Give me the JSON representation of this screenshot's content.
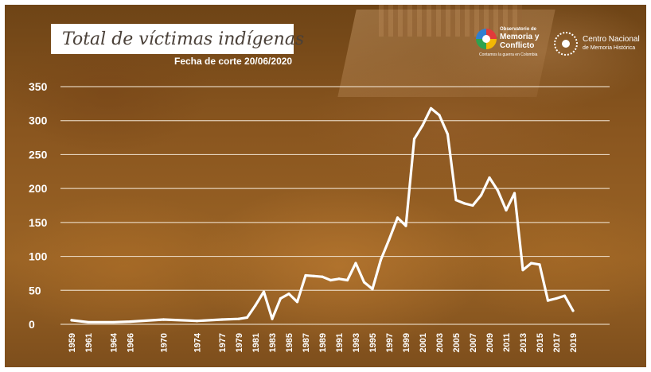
{
  "title": "Total de víctimas indígenas",
  "subtitle": "Fecha de corte  20/06/2020",
  "logos": {
    "observatorio": {
      "line1": "Observatorio de",
      "line2": "Memoria y",
      "line3": "Conflicto",
      "tagline": "Contamos la guerra en Colombia"
    },
    "cnmh": {
      "line1": "Centro Nacional",
      "line2": "de Memoria Histórica"
    }
  },
  "colors": {
    "line": "#ffffff",
    "grid": "#f3e6d4",
    "background": "#8a561f"
  },
  "chart_data": {
    "type": "line",
    "title": "Total de víctimas indígenas",
    "xlabel": "",
    "ylabel": "",
    "ylim": [
      0,
      350
    ],
    "yticks": [
      0,
      50,
      100,
      150,
      200,
      250,
      300,
      350
    ],
    "xtick_labels": [
      "1959",
      "1961",
      "1964",
      "1966",
      "1970",
      "1974",
      "1977",
      "1979",
      "1981",
      "1983",
      "1985",
      "1987",
      "1989",
      "1991",
      "1993",
      "1995",
      "1997",
      "1999",
      "2001",
      "2003",
      "2005",
      "2007",
      "2009",
      "2011",
      "2013",
      "2015",
      "2017",
      "2019"
    ],
    "grid": true,
    "series": [
      {
        "points": [
          [
            "1959",
            6
          ],
          [
            "1961",
            3
          ],
          [
            "1964",
            3
          ],
          [
            "1966",
            4
          ],
          [
            "1970",
            7
          ],
          [
            "1974",
            5
          ],
          [
            "1977",
            7
          ],
          [
            "1979",
            8
          ],
          [
            "1980",
            10
          ],
          [
            "1981",
            28
          ],
          [
            "1982",
            48
          ],
          [
            "1983",
            8
          ],
          [
            "1984",
            38
          ],
          [
            "1985",
            45
          ],
          [
            "1986",
            33
          ],
          [
            "1987",
            72
          ],
          [
            "1988",
            71
          ],
          [
            "1989",
            70
          ],
          [
            "1990",
            65
          ],
          [
            "1991",
            67
          ],
          [
            "1992",
            65
          ],
          [
            "1993",
            90
          ],
          [
            "1994",
            62
          ],
          [
            "1995",
            52
          ],
          [
            "1996",
            95
          ],
          [
            "1997",
            125
          ],
          [
            "1998",
            157
          ],
          [
            "1999",
            145
          ],
          [
            "2000",
            273
          ],
          [
            "2001",
            293
          ],
          [
            "2002",
            318
          ],
          [
            "2003",
            308
          ],
          [
            "2004",
            280
          ],
          [
            "2005",
            183
          ],
          [
            "2006",
            178
          ],
          [
            "2007",
            175
          ],
          [
            "2008",
            190
          ],
          [
            "2009",
            216
          ],
          [
            "2010",
            197
          ],
          [
            "2011",
            168
          ],
          [
            "2012",
            193
          ],
          [
            "2013",
            80
          ],
          [
            "2014",
            90
          ],
          [
            "2015",
            88
          ],
          [
            "2016",
            35
          ],
          [
            "2017",
            38
          ],
          [
            "2018",
            42
          ],
          [
            "2019",
            20
          ]
        ]
      }
    ]
  }
}
